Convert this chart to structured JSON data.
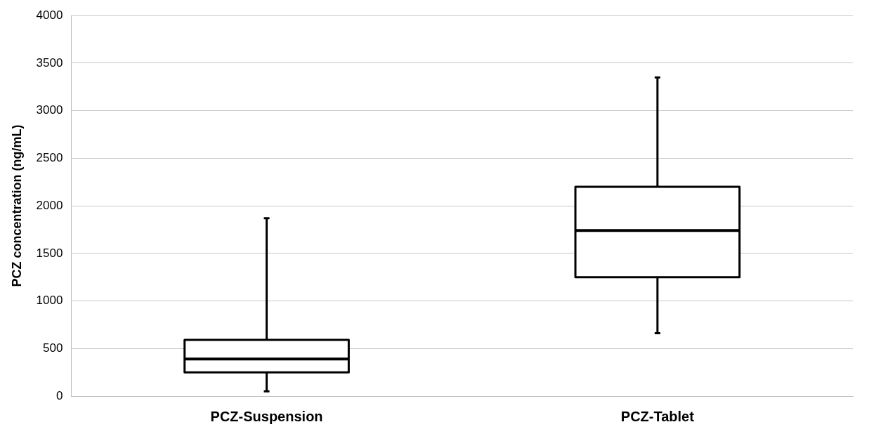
{
  "chart_data": {
    "type": "box",
    "ylabel": "PCZ concentration (ng/mL)",
    "categories": [
      "PCZ-Suspension",
      "PCZ-Tablet"
    ],
    "boxes": [
      {
        "low": 50,
        "q1": 250,
        "median": 390,
        "q3": 590,
        "high": 1870
      },
      {
        "low": 660,
        "q1": 1250,
        "median": 1740,
        "q3": 2200,
        "high": 3350
      }
    ],
    "ylim": [
      0,
      4000
    ],
    "yticks": [
      0,
      500,
      1000,
      1500,
      2000,
      2500,
      3000,
      3500,
      4000
    ],
    "grid": "y"
  }
}
